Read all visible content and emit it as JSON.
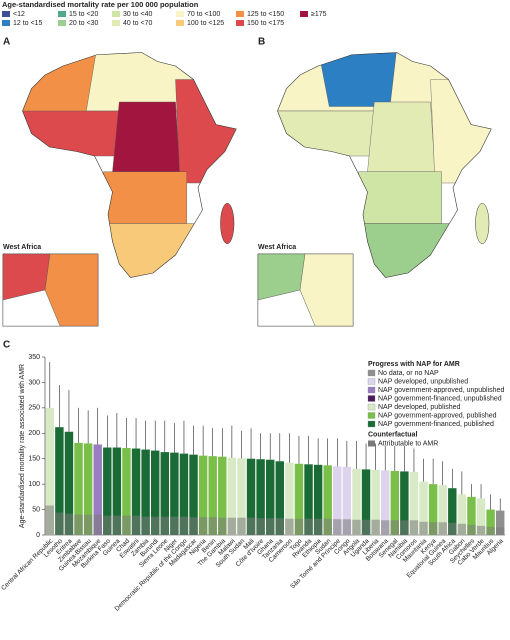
{
  "map_legend": {
    "title": "Age-standardised mortality rate per 100 000 population",
    "items": [
      {
        "label": "<12",
        "color": "#3e4f97"
      },
      {
        "label": "12 to <15",
        "color": "#2b7fc2"
      },
      {
        "label": "15 to <20",
        "color": "#4fa98a"
      },
      {
        "label": "20 to <30",
        "color": "#9ccf8e"
      },
      {
        "label": "30 to <40",
        "color": "#cfe5a6"
      },
      {
        "label": "40 to <70",
        "color": "#e3ebb4"
      },
      {
        "label": "70 to <100",
        "color": "#f8f4c6"
      },
      {
        "label": "100 to <125",
        "color": "#f9c97a"
      },
      {
        "label": "125 to <150",
        "color": "#f29048"
      },
      {
        "label": "150 to <175",
        "color": "#dc4a4d"
      },
      {
        "label": "≥175",
        "color": "#a1153f"
      }
    ]
  },
  "maps": [
    {
      "label": "A",
      "inset": "West Africa"
    },
    {
      "label": "B",
      "inset": "West Africa"
    }
  ],
  "chart_data": {
    "type": "bar",
    "panel": "C",
    "y_label": "Age-standardised mortality rate associated with AMR",
    "ylim": [
      0,
      350
    ],
    "yticks": [
      0,
      50,
      100,
      150,
      200,
      250,
      300,
      350
    ],
    "categories": [
      "Central African Republic",
      "Lesotho",
      "Eritrea",
      "Zimbabwe",
      "Guinea-Bissau",
      "Mozambique",
      "Burkina Faso",
      "Guinea",
      "Chad",
      "Eswatini",
      "Zambia",
      "Burundi",
      "Sierra Leone",
      "Niger",
      "Democratic Republic of the Congo",
      "Madagascar",
      "Nigeria",
      "Benin",
      "The Gambia",
      "Malawi",
      "South Sudan",
      "Mali",
      "Côte d'Ivoire",
      "Ghana",
      "Tanzania",
      "Cameroon",
      "Togo",
      "Rwanda",
      "Ethiopia",
      "Sudan",
      "São Tomé and Príncipe",
      "Congo",
      "Angola",
      "Uganda",
      "Liberia",
      "Botswana",
      "Senegal",
      "Namibia",
      "Comoros",
      "Mauritania",
      "Kenya",
      "Equatorial Guinea",
      "South Africa",
      "Gabon",
      "Seychelles",
      "Cabo Verde",
      "Mauritius",
      "Algeria"
    ],
    "values": [
      250,
      212,
      203,
      181,
      180,
      178,
      172,
      172,
      171,
      170,
      168,
      166,
      163,
      162,
      160,
      158,
      156,
      155,
      154,
      152,
      151,
      150,
      149,
      148,
      145,
      142,
      140,
      139,
      138,
      137,
      135,
      134,
      130,
      129,
      128,
      127,
      126,
      125,
      124,
      105,
      100,
      98,
      92,
      80,
      75,
      72,
      50,
      48
    ],
    "upper": [
      340,
      295,
      285,
      250,
      245,
      250,
      235,
      240,
      230,
      230,
      225,
      225,
      225,
      220,
      225,
      215,
      215,
      210,
      210,
      215,
      205,
      210,
      200,
      200,
      200,
      200,
      195,
      195,
      190,
      190,
      190,
      185,
      185,
      180,
      180,
      175,
      175,
      175,
      170,
      150,
      150,
      145,
      130,
      125,
      100,
      100,
      80,
      72
    ],
    "attributable": [
      58,
      44,
      42,
      40,
      40,
      40,
      38,
      38,
      38,
      38,
      36,
      36,
      36,
      36,
      36,
      35,
      35,
      35,
      34,
      34,
      34,
      34,
      33,
      33,
      33,
      32,
      32,
      32,
      32,
      32,
      31,
      31,
      30,
      30,
      30,
      29,
      29,
      29,
      29,
      26,
      25,
      25,
      24,
      22,
      20,
      18,
      16,
      15
    ],
    "status": [
      4,
      6,
      6,
      5,
      5,
      2,
      6,
      6,
      5,
      6,
      6,
      6,
      6,
      6,
      6,
      6,
      5,
      5,
      5,
      4,
      4,
      6,
      6,
      6,
      6,
      4,
      5,
      6,
      6,
      5,
      1,
      1,
      4,
      6,
      4,
      1,
      5,
      6,
      4,
      4,
      5,
      4,
      6,
      4,
      5,
      4,
      5,
      0
    ],
    "legend_title": "Progress with NAP for AMR",
    "legend": [
      {
        "name": "No data, or no NAP",
        "color": "#8f8f8f"
      },
      {
        "name": "NAP developed, unpublished",
        "color": "#dcd3ec"
      },
      {
        "name": "NAP government-approved, unpublished",
        "color": "#9a7cc0"
      },
      {
        "name": "NAP government-financed, unpublished",
        "color": "#4b1a5e"
      },
      {
        "name": "NAP developed, published",
        "color": "#d8eac5"
      },
      {
        "name": "NAP government-approved, published",
        "color": "#7abf4a"
      },
      {
        "name": "NAP government-financed, published",
        "color": "#1b6b36"
      }
    ],
    "counterfactual_title": "Counterfactual",
    "counterfactual": {
      "name": "Attributable to AMR",
      "color": "#7a7a7a"
    }
  }
}
